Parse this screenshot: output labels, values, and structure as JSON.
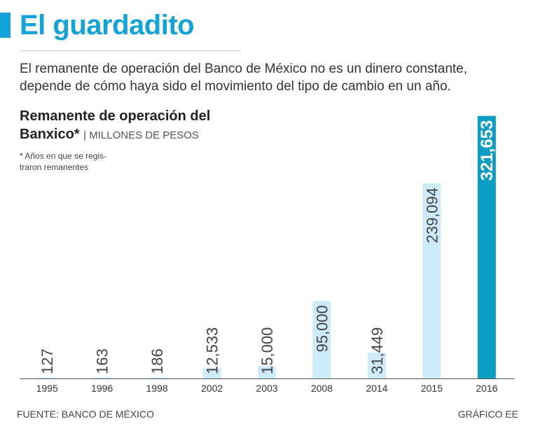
{
  "header": {
    "title": "El guardadito",
    "subtitle_lines": [
      "El remanente de operación del Banco de México no es un dinero constante,",
      "depende de cómo haya sido el movimiento del tipo de cambio en un año."
    ]
  },
  "chart_heading": {
    "line1": "Remanente de operación del",
    "line2": "Banxico*",
    "unit": "| MILLONES DE PESOS",
    "note_lines": [
      "* Años en que se regis-",
      "traron remanentes"
    ]
  },
  "footer": {
    "source": "FUENTE: BANCO DE MÉXICO",
    "credit": "GRÁFICO EE"
  },
  "colors": {
    "accent": "#12a3d9",
    "bar": "#cdebf8",
    "bar_highlight": "#0d9cc2",
    "value_text": "#444444"
  },
  "chart_data": {
    "type": "bar",
    "title": "Remanente de operación del Banxico*",
    "ylabel": "MILLONES DE PESOS",
    "xlabel": "",
    "grid": false,
    "ylim": [
      0,
      330000
    ],
    "categories": [
      "1995",
      "1996",
      "1998",
      "2002",
      "2003",
      "2008",
      "2014",
      "2015",
      "2016"
    ],
    "values": [
      127,
      163,
      186,
      12533,
      15000,
      95000,
      31449,
      239094,
      321653
    ],
    "value_labels": [
      "127",
      "163",
      "186",
      "12,533",
      "15,000",
      "95,000",
      "31,449",
      "239,094",
      "321,653"
    ],
    "highlight_category": "2016"
  }
}
